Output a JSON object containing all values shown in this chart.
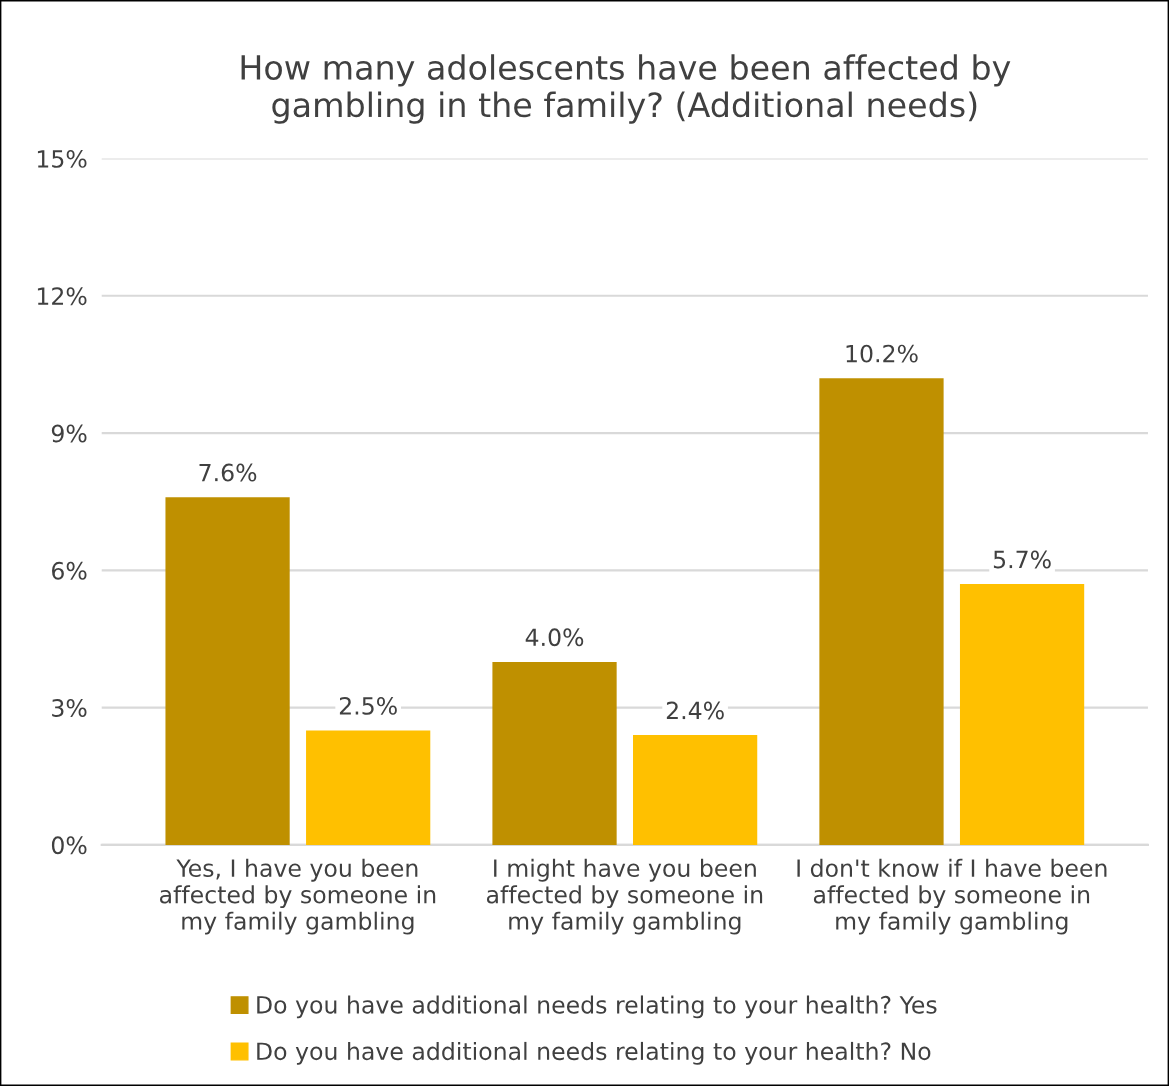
{
  "chart_data": {
    "type": "bar",
    "title": "How many adolescents have been affected by\ngambling in the family? (Additional needs)",
    "categories": [
      "Yes, I have you been\naffected by someone in\nmy family gambling",
      "I might have you been\naffected by someone in\nmy family gambling",
      "I don't know if I have been\naffected by someone in\nmy family gambling"
    ],
    "series": [
      {
        "name": "Do you have additional needs relating to your health? Yes",
        "color": "#bf9000",
        "values": [
          7.6,
          4.0,
          10.2
        ],
        "value_labels": [
          "7.6%",
          "4.0%",
          "10.2%"
        ]
      },
      {
        "name": "Do you have additional needs relating to your health? No",
        "color": "#ffc000",
        "values": [
          2.5,
          2.4,
          5.7
        ],
        "value_labels": [
          "2.5%",
          "2.4%",
          "5.7%"
        ]
      }
    ],
    "ylim": [
      0,
      15
    ],
    "yticks": [
      {
        "value": 0,
        "label": "0%"
      },
      {
        "value": 3,
        "label": "3%"
      },
      {
        "value": 6,
        "label": "6%"
      },
      {
        "value": 9,
        "label": "9%"
      },
      {
        "value": 12,
        "label": "12%"
      },
      {
        "value": 15,
        "label": "15%"
      }
    ],
    "grid": "y",
    "legend": "bottom"
  }
}
